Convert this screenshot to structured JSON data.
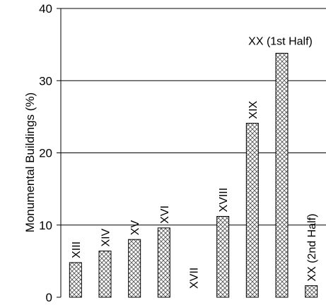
{
  "chart_data": {
    "type": "bar",
    "ylabel": "Monumental Buildings (%)",
    "xlabel": "",
    "ylim": [
      0,
      40
    ],
    "yticks": [
      0,
      10,
      20,
      30,
      40
    ],
    "grid": "horizontal",
    "bar_pattern": "crosshatch",
    "categories": [
      "XIII",
      "XIV",
      "XV",
      "XVI",
      "XVII",
      "XVIII",
      "XIX",
      "XX (1st Half)",
      "XX (2nd Half)"
    ],
    "values": [
      4.8,
      6.4,
      8.0,
      9.6,
      0,
      11.2,
      24.1,
      33.8,
      1.6
    ],
    "label_orientation": [
      "vertical",
      "vertical",
      "vertical",
      "vertical",
      "vertical",
      "vertical",
      "vertical",
      "horizontal",
      "vertical"
    ]
  }
}
